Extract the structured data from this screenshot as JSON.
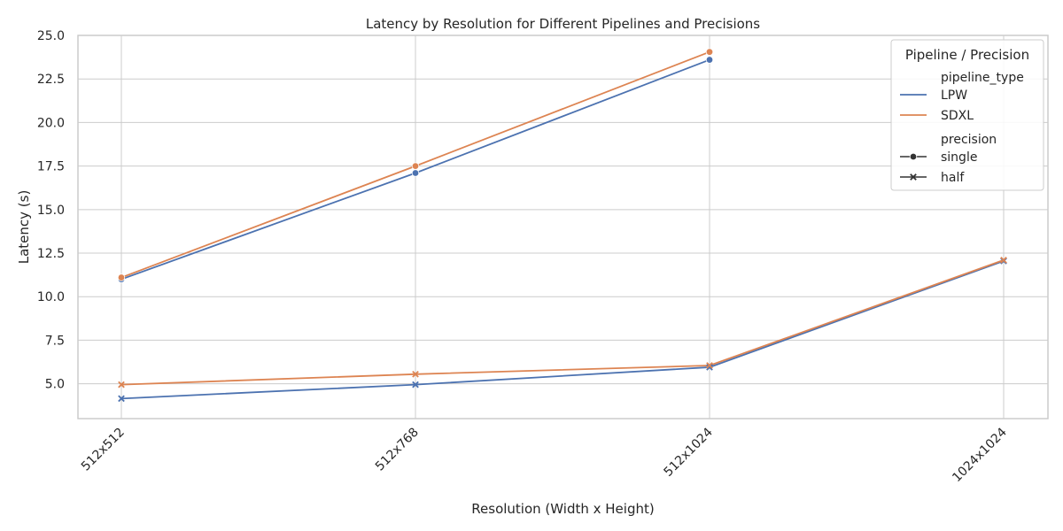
{
  "chart_data": {
    "type": "line",
    "title": "Latency by Resolution for Different Pipelines and Precisions",
    "xlabel": "Resolution (Width x Height)",
    "ylabel": "Latency (s)",
    "categories": [
      "512x512",
      "512x768",
      "512x1024",
      "1024x1024"
    ],
    "ylim": [
      3.0,
      25.0
    ],
    "yticks": [
      "5.0",
      "7.5",
      "10.0",
      "12.5",
      "15.0",
      "17.5",
      "20.0",
      "22.5",
      "25.0"
    ],
    "grid": true,
    "legend": {
      "title": "Pipeline / Precision",
      "placement": "top-right",
      "hue_heading": "pipeline_type",
      "style_heading": "precision",
      "hue_entries": [
        {
          "label": "LPW",
          "color": "#4c72b0"
        },
        {
          "label": "SDXL",
          "color": "#dd8452"
        }
      ],
      "style_entries": [
        {
          "label": "single",
          "marker": "circle"
        },
        {
          "label": "half",
          "marker": "x"
        }
      ]
    },
    "series": [
      {
        "pipeline": "LPW",
        "precision": "single",
        "color": "#4c72b0",
        "marker": "circle",
        "values": [
          11.0,
          17.1,
          23.6,
          null
        ]
      },
      {
        "pipeline": "SDXL",
        "precision": "single",
        "color": "#dd8452",
        "marker": "circle",
        "values": [
          11.1,
          17.5,
          24.05,
          null
        ]
      },
      {
        "pipeline": "LPW",
        "precision": "half",
        "color": "#4c72b0",
        "marker": "x",
        "values": [
          4.15,
          4.95,
          5.95,
          12.05
        ]
      },
      {
        "pipeline": "SDXL",
        "precision": "half",
        "color": "#dd8452",
        "marker": "x",
        "values": [
          4.95,
          5.55,
          6.05,
          12.1
        ]
      }
    ]
  }
}
